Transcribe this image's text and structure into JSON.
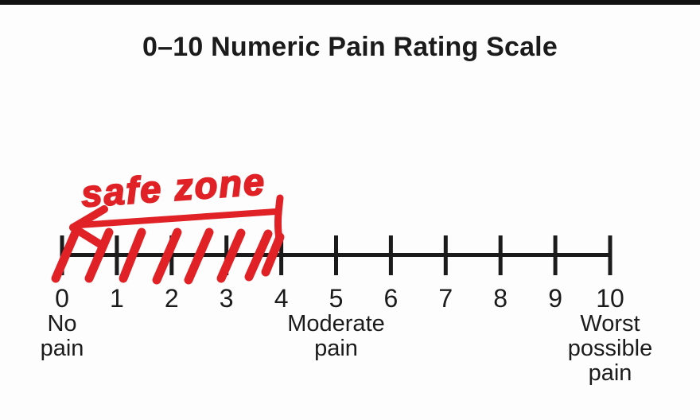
{
  "title": "0–10 Numeric Pain Rating Scale",
  "colors": {
    "ink": "#1b1b1b",
    "annotation_red": "#e02125",
    "background": "#fdfdfd",
    "top_bar": "#121212"
  },
  "chart_data": {
    "type": "scale",
    "title": "0–10 Numeric Pain Rating Scale",
    "axis": {
      "min": 0,
      "max": 10,
      "tick_step": 1,
      "orientation": "horizontal"
    },
    "tick_values": [
      0,
      1,
      2,
      3,
      4,
      5,
      6,
      7,
      8,
      9,
      10
    ],
    "anchor_labels": [
      {
        "value": 0,
        "lines": [
          "No",
          "pain"
        ]
      },
      {
        "value": 5,
        "lines": [
          "Moderate",
          "pain"
        ]
      },
      {
        "value": 10,
        "lines": [
          "Worst",
          "possible",
          "pain"
        ]
      }
    ],
    "annotation": {
      "text": "safe zone",
      "covers_range": [
        0,
        4
      ],
      "style": "handwritten-red-marker",
      "elements": [
        "left-pointing-arrow",
        "end-bar-at-4",
        "diagonal-hatching-0-to-4"
      ]
    }
  }
}
